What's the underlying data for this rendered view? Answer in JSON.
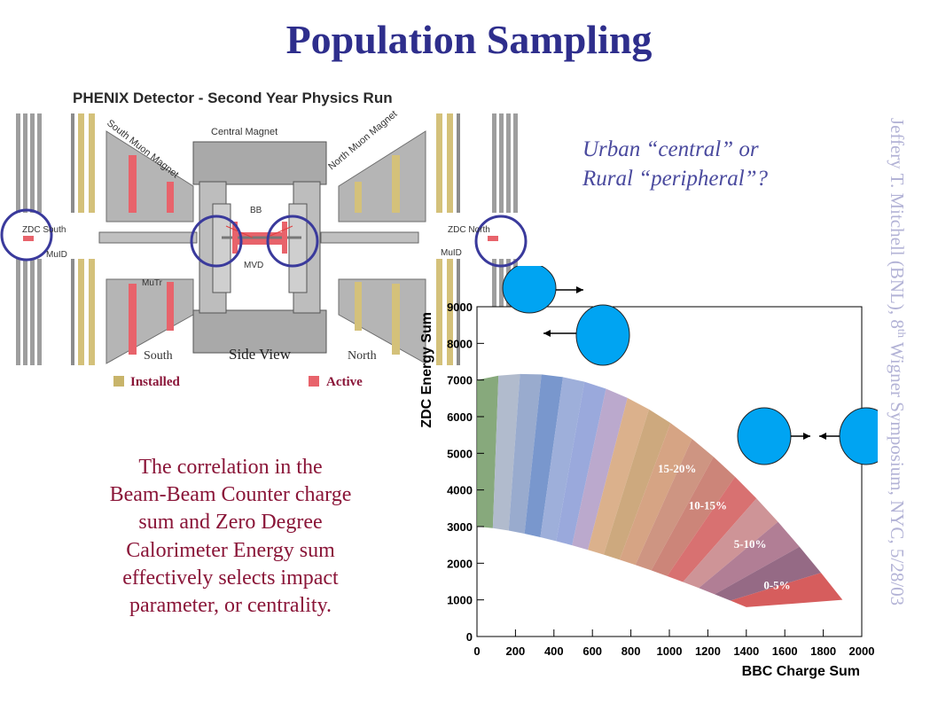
{
  "title": "Population Sampling",
  "sidebar_text": {
    "main": "Jeffery T. Mitchell (BNL), 8",
    "sup": "th",
    "rest": " Wigner Symposium, NYC, 5/28/03"
  },
  "question": {
    "line1": "Urban “central” or",
    "line2": "Rural “peripheral”?"
  },
  "description_lines": [
    "The correlation in the",
    "Beam-Beam Counter charge",
    "sum and Zero Degree",
    "Calorimeter Energy sum",
    "effectively selects impact",
    "parameter, or centrality."
  ],
  "detector": {
    "title": "PHENIX Detector - Second Year Physics Run",
    "central_magnet": "Central Magnet",
    "south_muon_magnet": "South Muon Magnet",
    "north_muon_magnet": "North Muon Magnet",
    "zdc_south": "ZDC South",
    "zdc_north": "ZDC North",
    "muid": "MuID",
    "mutr": "MuTr",
    "bb": "BB",
    "mvd": "MVD",
    "south": "South",
    "north": "North",
    "side_view": "Side View",
    "legend_installed": "Installed",
    "legend_active": "Active",
    "colors": {
      "installed": "#c8b46a",
      "active": "#e8636b",
      "steel": "#a9a9a9",
      "circle": "#3a3a9c"
    }
  },
  "chart_data": {
    "type": "scatter",
    "xlabel": "BBC Charge Sum",
    "ylabel": "ZDC Energy Sum",
    "xlim": [
      0,
      2000
    ],
    "ylim": [
      0,
      9000
    ],
    "xticks": [
      0,
      200,
      400,
      600,
      800,
      1000,
      1200,
      1400,
      1600,
      1800,
      2000
    ],
    "yticks": [
      0,
      1000,
      2000,
      3000,
      4000,
      5000,
      6000,
      7000,
      8000,
      9000
    ],
    "centrality_labels": [
      {
        "label": "0-5%",
        "x": 1560,
        "y": 1300
      },
      {
        "label": "5-10%",
        "x": 1420,
        "y": 2420
      },
      {
        "label": "10-15%",
        "x": 1200,
        "y": 3470
      },
      {
        "label": "15-20%",
        "x": 1040,
        "y": 4480
      }
    ],
    "colors": {
      "circle_fill": "#00a4f2",
      "axis": "#000000"
    }
  }
}
